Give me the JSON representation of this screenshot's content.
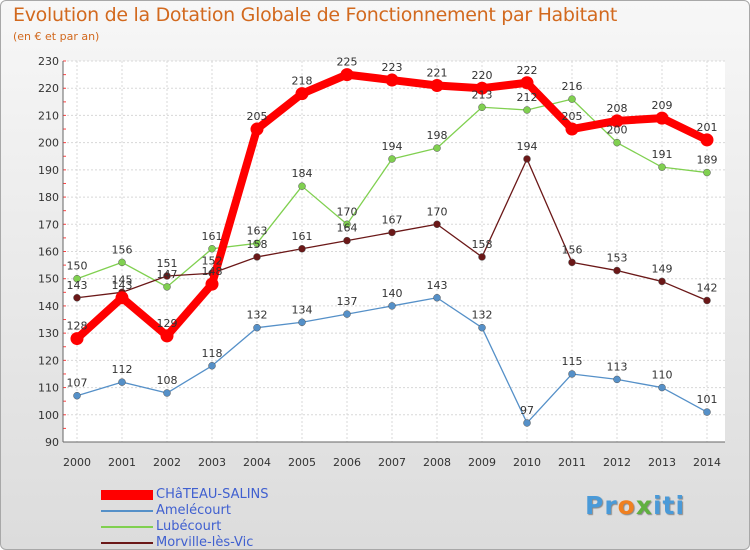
{
  "chart_data": {
    "type": "line",
    "title": "Evolution de la Dotation Globale de Fonctionnement par Habitant",
    "subtitle": "(en € et par an)",
    "x": [
      "2000",
      "2001",
      "2002",
      "2003",
      "2004",
      "2005",
      "2006",
      "2007",
      "2008",
      "2009",
      "2010",
      "2011",
      "2012",
      "2013",
      "2014"
    ],
    "ylim": [
      90,
      230
    ],
    "yticks": [
      90,
      100,
      110,
      120,
      130,
      140,
      150,
      160,
      170,
      180,
      190,
      200,
      210,
      220,
      230
    ],
    "grid": true,
    "series": [
      {
        "name": "CHâTEAU-SALINS",
        "color": "#ff0000",
        "values": [
          128,
          143,
          129,
          148,
          205,
          218,
          225,
          223,
          221,
          220,
          222,
          205,
          208,
          209,
          201
        ],
        "labels": [
          "128",
          "143",
          "129",
          "148",
          "205",
          "218",
          "225",
          "223",
          "221",
          "220",
          "222",
          "205",
          "208",
          "209",
          "201"
        ]
      },
      {
        "name": "Amelécourt",
        "color": "#5590c8",
        "values": [
          107,
          112,
          108,
          118,
          132,
          134,
          137,
          140,
          143,
          132,
          97,
          115,
          113,
          110,
          101
        ],
        "labels": [
          "107",
          "112",
          "108",
          "118",
          "132",
          "134",
          "137",
          "140",
          "143",
          "132",
          "97",
          "115",
          "113",
          "110",
          "101"
        ]
      },
      {
        "name": "Lubécourt",
        "color": "#80d050",
        "values": [
          150,
          156,
          147,
          161,
          163,
          184,
          170,
          194,
          198,
          213,
          212,
          216,
          200,
          191,
          189
        ],
        "labels": [
          "150",
          "156",
          "147",
          "161",
          "163",
          "184",
          "170",
          "194",
          "198",
          "213",
          "212",
          "216",
          "200",
          "191",
          "189"
        ]
      },
      {
        "name": "Morville-lès-Vic",
        "color": "#6b1818",
        "values": [
          143,
          145,
          151,
          152,
          158,
          161,
          164,
          167,
          170,
          158,
          194,
          156,
          153,
          149,
          142
        ],
        "labels": [
          "143",
          "145",
          "151",
          "152",
          "158",
          "161",
          "164",
          "167",
          "170",
          "158",
          "194",
          "156",
          "153",
          "149",
          "142"
        ]
      }
    ],
    "legend_position": "bottom-left"
  },
  "logo": {
    "p1": "Pr",
    "o": "o",
    "x": "x",
    "p2": "iti"
  }
}
